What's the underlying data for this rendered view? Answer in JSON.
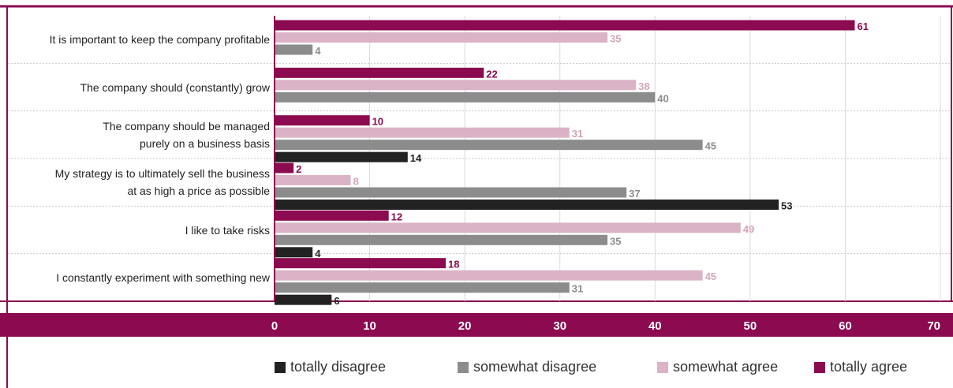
{
  "chart_data": {
    "type": "bar",
    "orientation": "horizontal",
    "categories": [
      "It is important to keep the company profitable",
      "The company should (constantly) grow",
      "The company should be managed purely on a  business basis",
      "My strategy is to ultimately sell the business at as high a price as possible",
      "I like to take risks",
      "I constantly experiment with something new"
    ],
    "category_lines": [
      [
        "It is important to keep the company profitable"
      ],
      [
        "The company should (constantly) grow"
      ],
      [
        "The company should be managed",
        "purely on a  business basis"
      ],
      [
        "My strategy is to ultimately sell the business",
        "at as high a price as possible"
      ],
      [
        "I like to take risks"
      ],
      [
        "I constantly experiment with something new"
      ]
    ],
    "series": [
      {
        "name": "totally agree",
        "color": "#8b0a50",
        "values": [
          61,
          22,
          10,
          2,
          12,
          18
        ]
      },
      {
        "name": "somewhat agree",
        "color": "#dbb3c6",
        "values": [
          35,
          38,
          31,
          8,
          49,
          45
        ]
      },
      {
        "name": "somewhat disagree",
        "color": "#8c8c8c",
        "values": [
          4,
          40,
          45,
          37,
          35,
          31
        ]
      },
      {
        "name": "totally disagree",
        "color": "#222222",
        "values": [
          null,
          null,
          14,
          53,
          4,
          6
        ]
      }
    ],
    "legend_order": [
      "totally disagree",
      "somewhat disagree",
      "somewhat agree",
      "totally agree"
    ],
    "xlim": [
      0,
      70
    ],
    "xticks": [
      0,
      10,
      20,
      30,
      40,
      50,
      60,
      70
    ],
    "grid": true,
    "legend_position": "bottom",
    "accent_color": "#8b0a50"
  }
}
